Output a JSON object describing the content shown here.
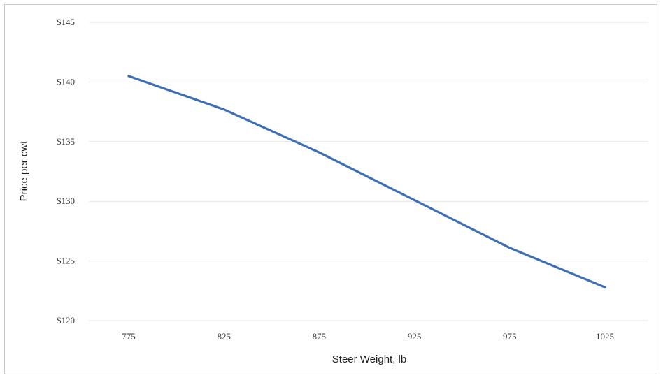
{
  "chart_data": {
    "type": "line",
    "title": "",
    "xlabel": "Steer Weight, lb",
    "ylabel": "Price per cwt",
    "x": [
      775,
      825,
      875,
      925,
      975,
      1025
    ],
    "x_tick_labels": [
      "775",
      "825",
      "875",
      "925",
      "975",
      "1025"
    ],
    "y_tick_values": [
      120,
      125,
      130,
      135,
      140,
      145
    ],
    "y_tick_labels": [
      "$120",
      "$125",
      "$130",
      "$135",
      "$140",
      "$145"
    ],
    "ylim": [
      120,
      145
    ],
    "grid": true,
    "legend": "none",
    "series": [
      {
        "values": [
          140.5,
          137.7,
          134.1,
          130.1,
          126.1,
          122.8
        ],
        "color": "#3f6fb3"
      }
    ]
  }
}
